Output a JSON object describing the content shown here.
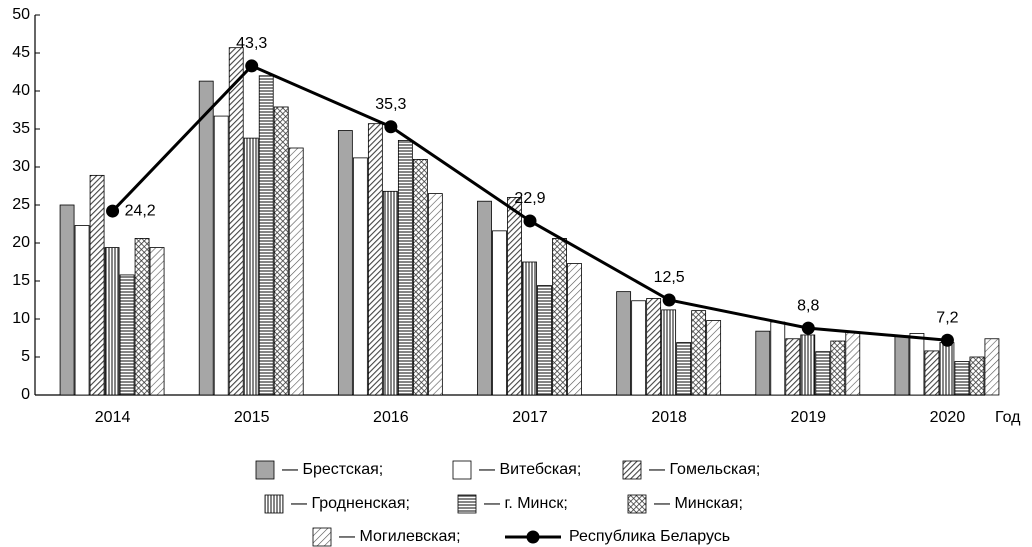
{
  "chart_data": {
    "type": "bar-line",
    "x_label": "Год",
    "categories": [
      "2014",
      "2015",
      "2016",
      "2017",
      "2018",
      "2019",
      "2020"
    ],
    "ylim": [
      0,
      50
    ],
    "yticks": [
      0,
      5,
      10,
      15,
      20,
      25,
      30,
      35,
      40,
      45,
      50
    ],
    "series": [
      {
        "name": "— Брестская;",
        "pattern": "gray",
        "values": [
          25.0,
          41.3,
          34.8,
          25.5,
          13.6,
          8.4,
          7.8
        ]
      },
      {
        "name": "— Витебская;",
        "pattern": "white",
        "values": [
          22.3,
          36.7,
          31.2,
          21.6,
          12.4,
          9.6,
          8.1
        ]
      },
      {
        "name": "— Гомельская;",
        "pattern": "diag-dense",
        "values": [
          28.9,
          45.7,
          35.7,
          26.0,
          12.7,
          7.4,
          5.8
        ]
      },
      {
        "name": "— Гродненская;",
        "pattern": "vertical",
        "values": [
          19.4,
          33.8,
          26.8,
          17.5,
          11.2,
          7.9,
          6.9
        ]
      },
      {
        "name": "— г. Минск;",
        "pattern": "horizontal",
        "values": [
          15.8,
          42.0,
          33.5,
          14.4,
          6.9,
          5.7,
          4.4
        ]
      },
      {
        "name": "— Минская;",
        "pattern": "cross",
        "values": [
          20.6,
          37.9,
          31.0,
          20.6,
          11.1,
          7.1,
          5.0
        ]
      },
      {
        "name": "— Могилевская;",
        "pattern": "diag-light",
        "values": [
          19.4,
          32.5,
          26.5,
          17.3,
          9.8,
          8.3,
          7.4
        ]
      },
      {
        "name": "Республика Беларусь",
        "type": "line",
        "color": "#000000",
        "values": [
          24.2,
          43.3,
          35.3,
          22.9,
          12.5,
          8.8,
          7.2
        ],
        "value_labels": [
          "24,2",
          "43,3",
          "35,3",
          "22,9",
          "12,5",
          "8,8",
          "7,2"
        ]
      }
    ]
  }
}
